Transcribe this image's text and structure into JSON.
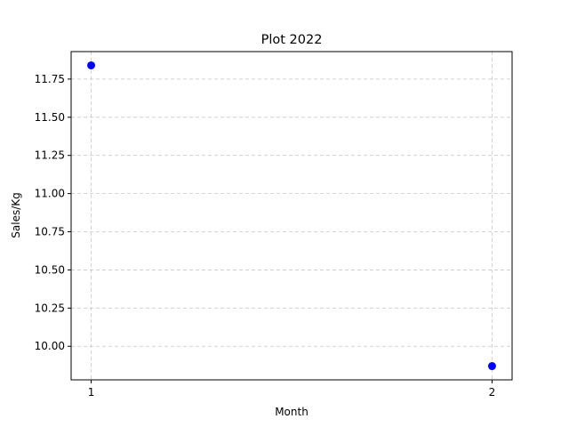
{
  "chart_data": {
    "type": "scatter",
    "title": "Plot 2022",
    "xlabel": "Month",
    "ylabel": "Sales/Kg",
    "x": [
      1,
      2
    ],
    "y": [
      11.84,
      9.87
    ],
    "xlim": [
      0.95,
      2.05
    ],
    "ylim": [
      9.78,
      11.93
    ],
    "xticks": [
      "1",
      "2"
    ],
    "yticks": [
      "10.00",
      "10.25",
      "10.50",
      "10.75",
      "11.00",
      "11.25",
      "11.50",
      "11.75"
    ],
    "grid": true,
    "marker_color": "#0000ff"
  }
}
